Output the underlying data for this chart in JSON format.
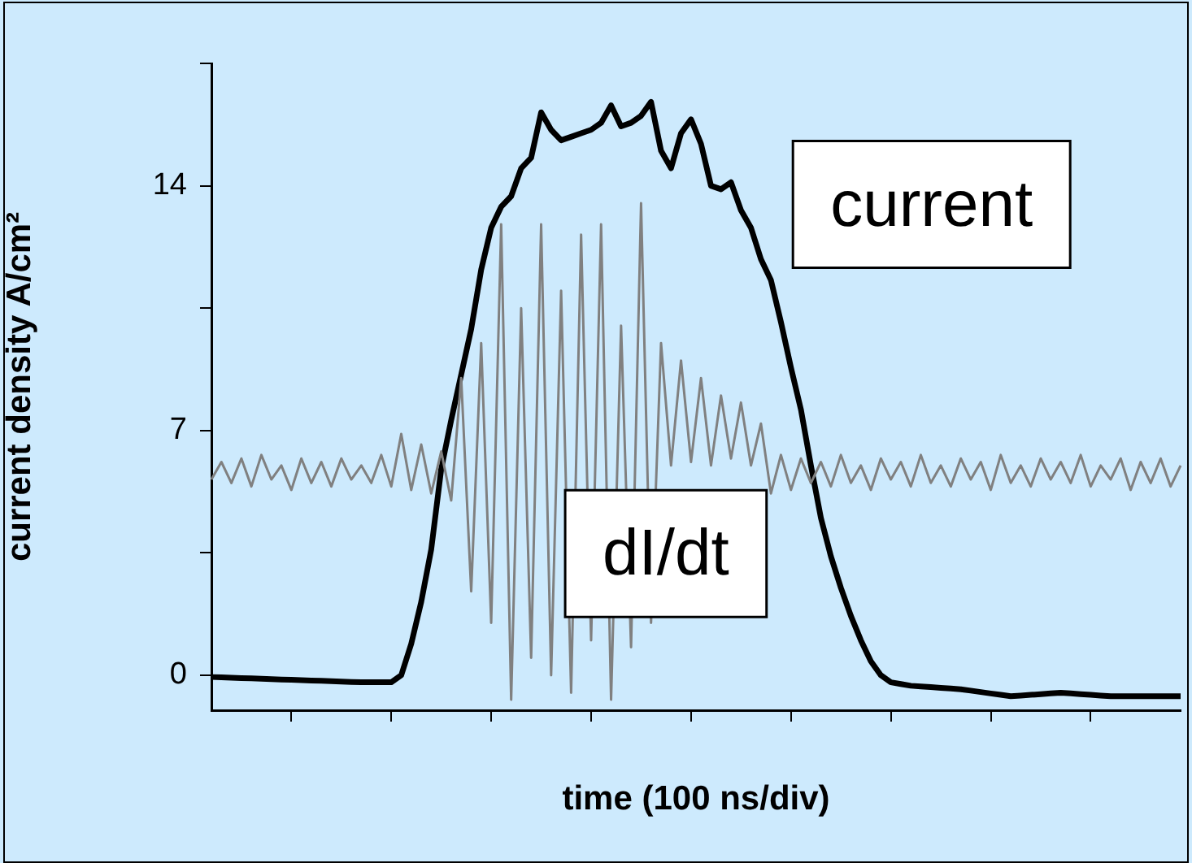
{
  "chart_data": {
    "type": "line",
    "xlabel": "time (100 ns/div)",
    "ylabel": "current density A/cm²",
    "categories": [
      null,
      null,
      null,
      null,
      null,
      null,
      null,
      null,
      null,
      null,
      null,
      null,
      null,
      null,
      null,
      null,
      null,
      null,
      null,
      null,
      null,
      null,
      null,
      null,
      null,
      null,
      null,
      null,
      null,
      null,
      null,
      null,
      null,
      null,
      null,
      null,
      null,
      null,
      null,
      null,
      null,
      null,
      null,
      null,
      null,
      null,
      null,
      null,
      null,
      null,
      null,
      null,
      null,
      null,
      null,
      null,
      null,
      null,
      null,
      null,
      null,
      null,
      null,
      null,
      null,
      null,
      null,
      null,
      null,
      null,
      null,
      null,
      null,
      null,
      null,
      null,
      null,
      null,
      null,
      null,
      null,
      null,
      null,
      null,
      null,
      null,
      null,
      null,
      null,
      null,
      null,
      null,
      null,
      null,
      null,
      null,
      null,
      null
    ],
    "series": [
      {
        "name": "dI/dt",
        "color": "#808080",
        "values": [
          5.6,
          6.1,
          5.5,
          6.2,
          5.4,
          6.3,
          5.6,
          6.0,
          5.3,
          6.2,
          5.5,
          6.1,
          5.4,
          6.2,
          5.6,
          6.0,
          5.5,
          6.3,
          5.4,
          6.9,
          5.3,
          6.6,
          5.2,
          6.4,
          5.0,
          8.5,
          2.4,
          9.5,
          1.5,
          12.9,
          -0.7,
          10.5,
          0.5,
          12.9,
          0.0,
          11.0,
          -0.5,
          12.6,
          1.0,
          12.9,
          -0.7,
          10.0,
          0.8,
          13.5,
          1.5,
          9.5,
          6.0,
          9.0,
          6.1,
          8.5,
          6.0,
          8.0,
          6.2,
          7.8,
          6.0,
          7.2,
          5.2,
          6.3,
          5.3,
          6.2,
          5.5,
          6.1,
          5.4,
          6.3,
          5.5,
          6.0,
          5.3,
          6.2,
          5.6,
          6.1,
          5.4,
          6.3,
          5.5,
          6.0,
          5.4,
          6.2,
          5.6,
          6.1,
          5.3,
          6.3,
          5.5,
          6.0,
          5.4,
          6.2,
          5.6,
          6.1,
          5.5,
          6.3,
          5.4,
          6.0,
          5.6,
          6.2,
          5.3,
          6.1,
          5.5,
          6.2,
          5.4,
          6.0
        ]
      },
      {
        "name": "current",
        "color": "#000000",
        "values": [
          -0.05,
          -0.06,
          -0.07,
          -0.08,
          -0.09,
          -0.1,
          -0.11,
          -0.12,
          -0.13,
          -0.14,
          -0.15,
          -0.16,
          -0.17,
          -0.18,
          -0.19,
          -0.2,
          -0.2,
          -0.2,
          -0.2,
          0.0,
          0.9,
          2.1,
          3.6,
          5.9,
          7.3,
          8.6,
          9.9,
          11.6,
          12.8,
          13.4,
          13.7,
          14.5,
          14.8,
          16.1,
          15.6,
          15.3,
          15.4,
          15.5,
          15.6,
          15.8,
          16.3,
          15.7,
          15.8,
          16.0,
          16.4,
          15.0,
          14.5,
          15.5,
          15.9,
          15.2,
          14.0,
          13.9,
          14.1,
          13.3,
          12.8,
          11.9,
          11.3,
          10.1,
          8.8,
          7.6,
          6.0,
          4.5,
          3.4,
          2.5,
          1.7,
          1.0,
          0.4,
          0.0,
          -0.2,
          -0.25,
          -0.3,
          -0.32,
          -0.34,
          -0.36,
          -0.38,
          -0.4,
          -0.44,
          -0.48,
          -0.52,
          -0.56,
          -0.6,
          -0.58,
          -0.56,
          -0.54,
          -0.52,
          -0.5,
          -0.52,
          -0.54,
          -0.56,
          -0.58,
          -0.6,
          -0.6,
          -0.6,
          -0.6,
          -0.6,
          -0.6,
          -0.6,
          -0.6
        ]
      }
    ],
    "ylim": [
      -1,
      17.5
    ],
    "yticks": [
      0,
      {
        "value": 3.5,
        "label": null
      },
      7,
      {
        "value": 10.5,
        "label": null
      },
      14,
      {
        "value": 17.5,
        "label": null
      }
    ],
    "tick_labels": "y",
    "grid": false,
    "legend": false,
    "marker": "none",
    "line_style": "solid"
  }
}
